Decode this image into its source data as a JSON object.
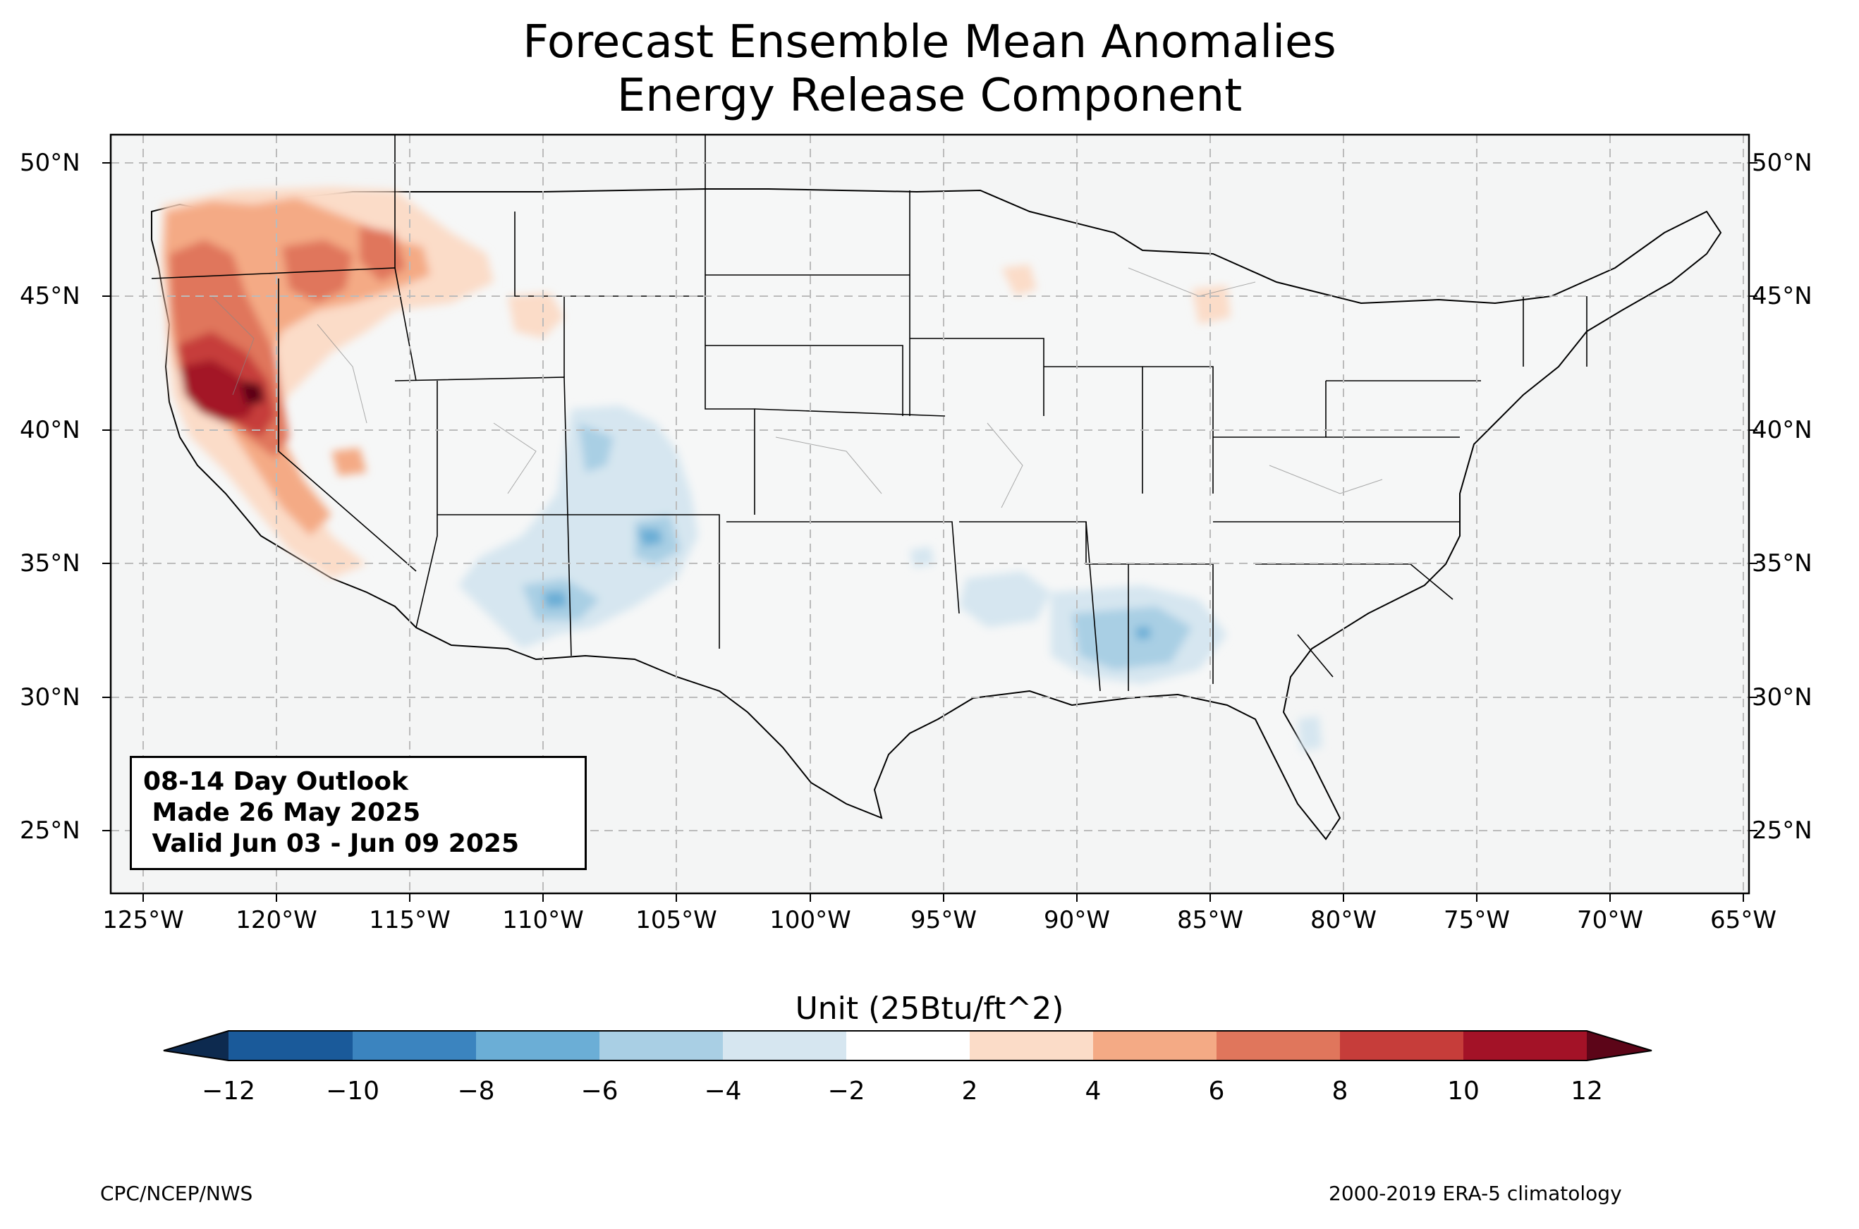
{
  "title_line1": "Forecast Ensemble Mean Anomalies",
  "title_line2": "Energy Release Component",
  "lat_labels": [
    "50°N",
    "45°N",
    "40°N",
    "35°N",
    "30°N",
    "25°N"
  ],
  "lon_labels": [
    "125°W",
    "120°W",
    "115°W",
    "110°W",
    "105°W",
    "100°W",
    "95°W",
    "90°W",
    "85°W",
    "80°W",
    "75°W",
    "70°W",
    "65°W"
  ],
  "map_extent": {
    "lon_min": -126.2,
    "lon_max": -64.8,
    "lat_min": 22.7,
    "lat_max": 51.2
  },
  "outlook": {
    "line1": "08-14 Day Outlook",
    "line2": " Made 26 May 2025",
    "line3": " Valid Jun 03 - Jun 09 2025"
  },
  "colorbar": {
    "title": "Unit (25Btu/ft^2)",
    "ticks": [
      "−12",
      "−10",
      "−8",
      "−6",
      "−4",
      "−2",
      "2",
      "4",
      "6",
      "8",
      "10",
      "12"
    ],
    "colors": [
      "#1a5a9a",
      "#3b84bf",
      "#6baed6",
      "#a9cfe4",
      "#d6e6f0",
      "#ffffff",
      "#fbdcc8",
      "#f4aa85",
      "#e0765c",
      "#c63d3a",
      "#a31227"
    ],
    "extend_low_color": "#0d2a4f",
    "extend_high_color": "#5c0518"
  },
  "footer_left": "CPC/NCEP/NWS",
  "footer_right": "2000-2019 ERA-5 climatology"
}
